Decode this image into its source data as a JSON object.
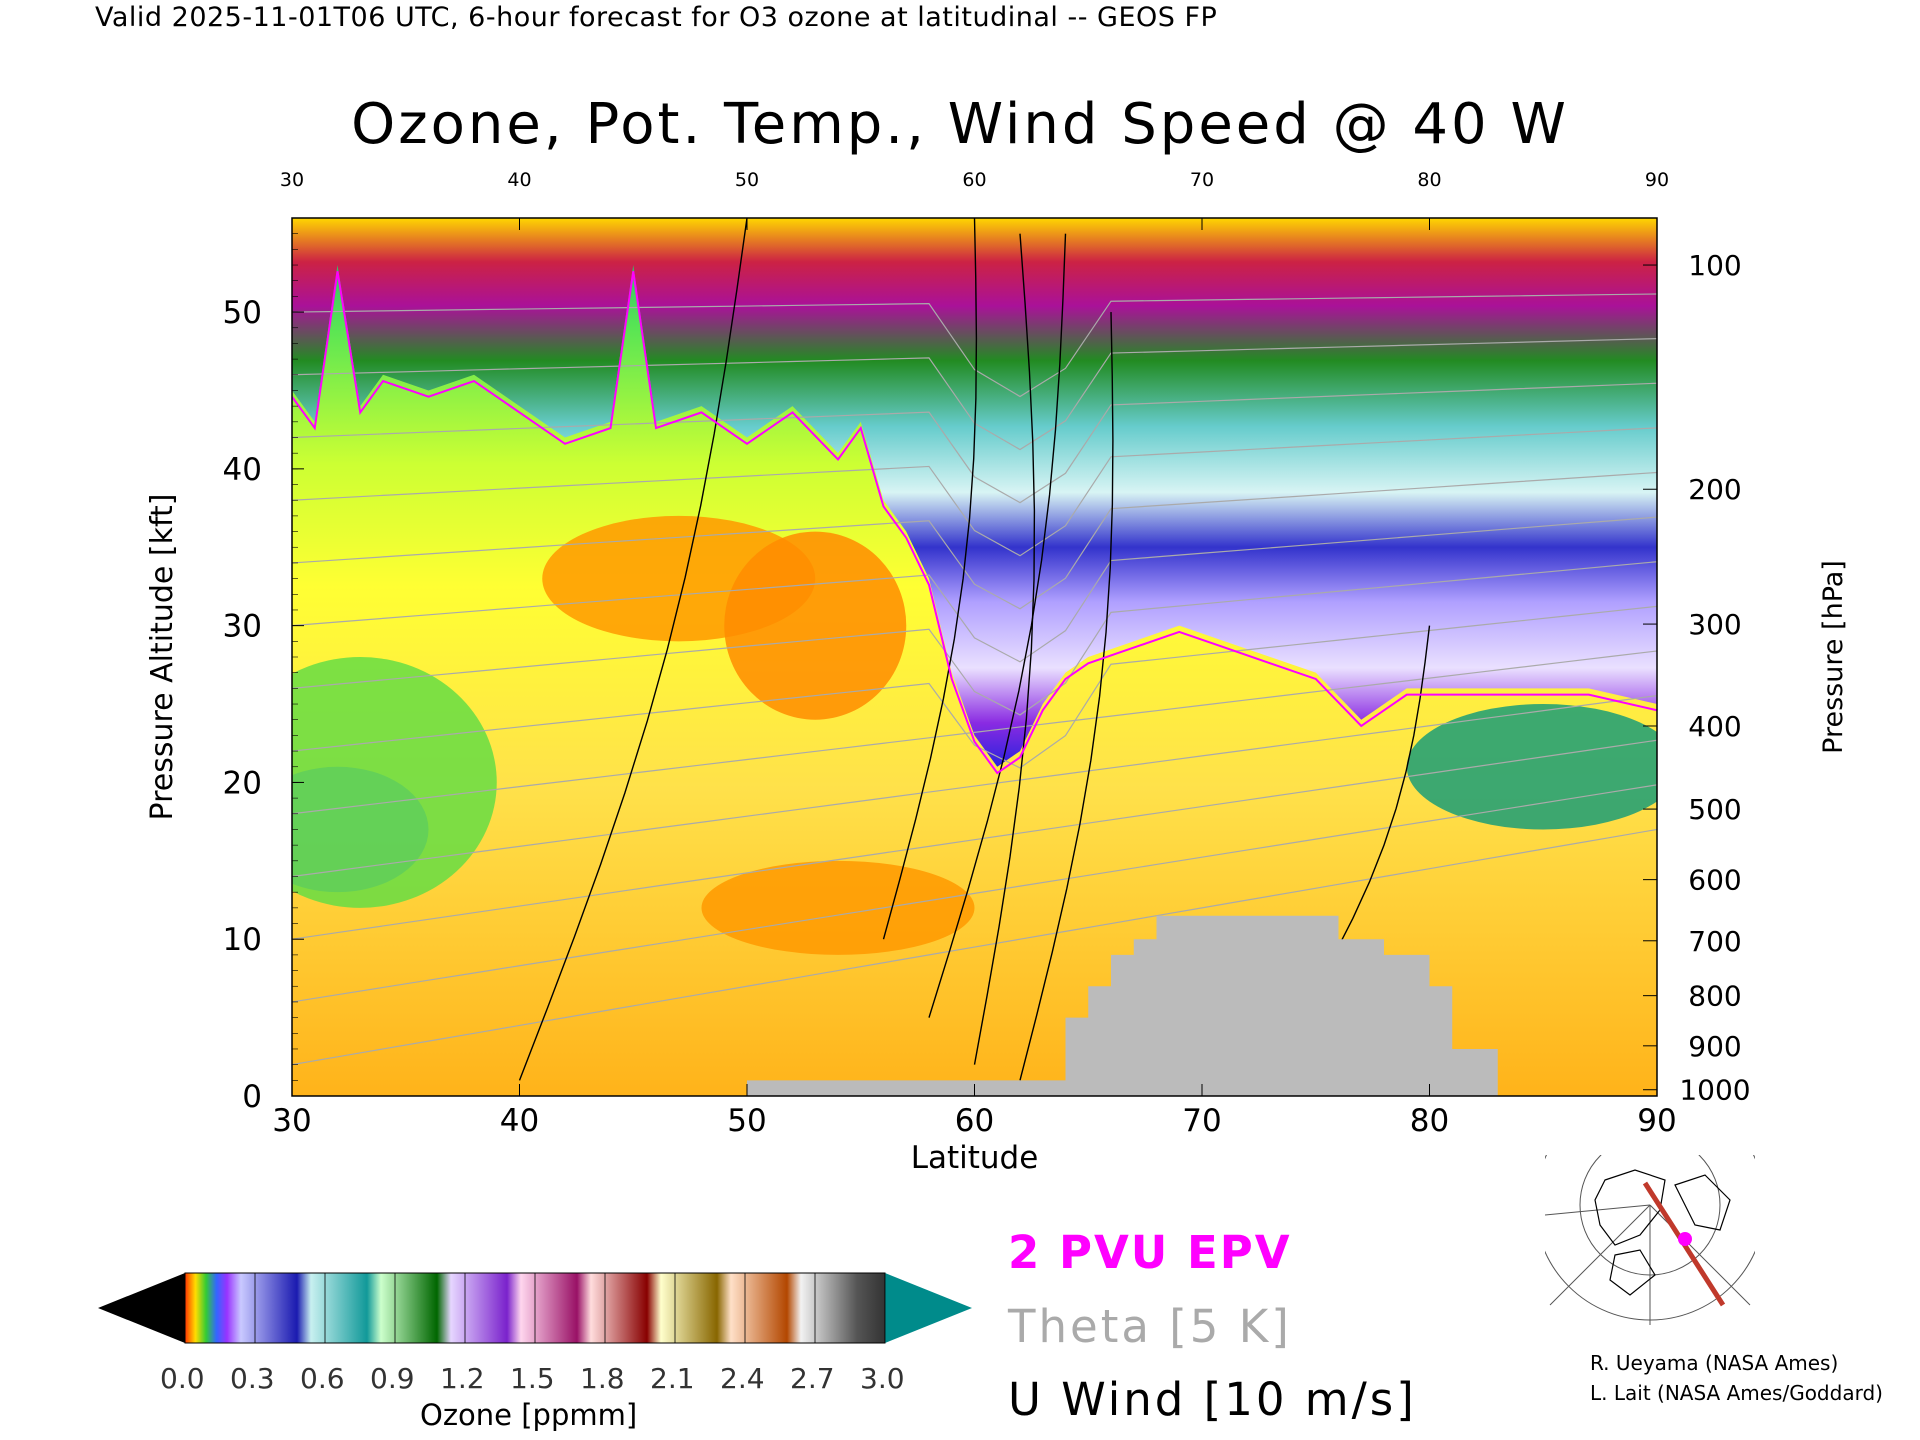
{
  "header": "Valid 2025-11-01T06 UTC, 6-hour forecast for O3 ozone at latitudinal -- GEOS FP",
  "chart_data": {
    "type": "heatmap",
    "title": "Ozone, Pot. Temp., Wind Speed @ 40 W",
    "xlabel": "Latitude",
    "ylabel": "Pressure Altitude [kft]",
    "y2label": "Pressure [hPa]",
    "xlim": [
      30,
      90
    ],
    "ylim": [
      0,
      56
    ],
    "x_ticks": [
      "30",
      "40",
      "50",
      "60",
      "70",
      "80",
      "90"
    ],
    "y_ticks": [
      "0",
      "10",
      "20",
      "30",
      "40",
      "50"
    ],
    "y_tick_values": [
      0,
      10,
      20,
      30,
      40,
      50
    ],
    "pressure_ticks": [
      "100",
      "200",
      "300",
      "400",
      "500",
      "600",
      "700",
      "800",
      "900",
      "1000"
    ],
    "pressure_tick_altitudes": [
      53.0,
      38.7,
      30.1,
      23.6,
      18.3,
      13.8,
      9.9,
      6.4,
      3.2,
      0.4
    ],
    "tropopause_kft": [
      [
        30,
        45
      ],
      [
        31,
        43
      ],
      [
        32,
        53
      ],
      [
        33,
        44
      ],
      [
        34,
        46
      ],
      [
        36,
        45
      ],
      [
        38,
        46
      ],
      [
        40,
        44
      ],
      [
        42,
        42
      ],
      [
        44,
        43
      ],
      [
        45,
        53
      ],
      [
        46,
        43
      ],
      [
        48,
        44
      ],
      [
        50,
        42
      ],
      [
        52,
        44
      ],
      [
        54,
        41
      ],
      [
        55,
        43
      ],
      [
        56,
        38
      ],
      [
        57,
        36
      ],
      [
        58,
        33
      ],
      [
        59,
        27
      ],
      [
        60,
        23
      ],
      [
        61,
        21
      ],
      [
        62,
        22
      ],
      [
        63,
        25
      ],
      [
        64,
        27
      ],
      [
        65,
        28
      ],
      [
        67,
        29
      ],
      [
        69,
        30
      ],
      [
        71,
        29
      ],
      [
        73,
        28
      ],
      [
        75,
        27
      ],
      [
        77,
        24
      ],
      [
        79,
        26
      ],
      [
        81,
        26
      ],
      [
        83,
        26
      ],
      [
        85,
        26
      ],
      [
        87,
        26
      ],
      [
        90,
        25
      ]
    ],
    "surface_kft": [
      [
        50,
        1
      ],
      [
        64,
        1
      ],
      [
        64,
        5
      ],
      [
        65,
        5
      ],
      [
        65,
        7
      ],
      [
        66,
        7
      ],
      [
        66,
        9
      ],
      [
        67,
        9
      ],
      [
        67,
        10
      ],
      [
        68,
        10
      ],
      [
        68,
        11.5
      ],
      [
        76,
        11.5
      ],
      [
        76,
        10
      ],
      [
        78,
        10
      ],
      [
        78,
        9
      ],
      [
        80,
        9
      ],
      [
        80,
        7
      ],
      [
        81,
        7
      ],
      [
        81,
        3
      ],
      [
        83,
        3
      ],
      [
        83,
        1
      ]
    ],
    "wind_contours": [
      "10",
      "20",
      "30",
      "40",
      "50",
      "-10",
      "0"
    ],
    "theta_contours": [
      "290",
      "300",
      "310",
      "320",
      "330",
      "340",
      "350",
      "360",
      "370",
      "380",
      "390",
      "400",
      "410"
    ],
    "colorbar": {
      "label": "Ozone [ppmm]",
      "ticks": [
        "0.0",
        "0.3",
        "0.6",
        "0.9",
        "1.2",
        "1.5",
        "1.8",
        "2.1",
        "2.4",
        "2.7",
        "3.0"
      ],
      "min": 0.0,
      "max": 3.0,
      "under_color": "#000000",
      "over_color": "#008b8b"
    }
  },
  "legend": {
    "pvu": "2 PVU EPV",
    "theta": "Theta [5 K]",
    "uwind": "U Wind [10 m/s]"
  },
  "colors": {
    "pvu": "#ff00ff",
    "theta": "#aaaaaa",
    "surface": "#bbbbbb"
  },
  "credits": [
    "R. Ueyama (NASA Ames)",
    "L. Lait (NASA Ames/Goddard)"
  ]
}
